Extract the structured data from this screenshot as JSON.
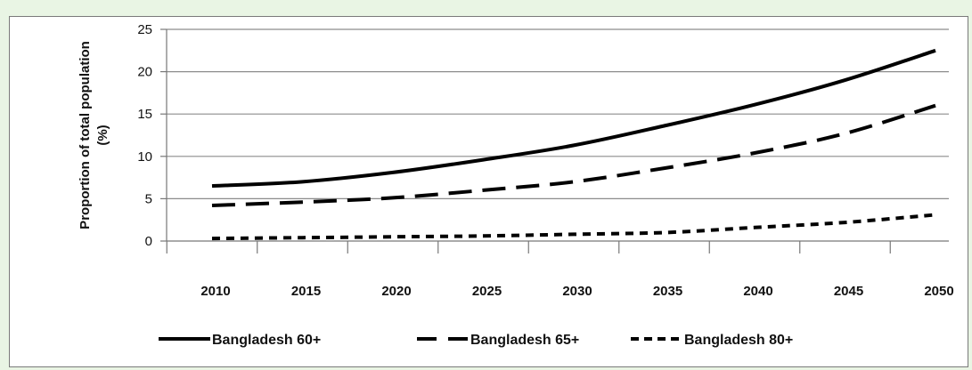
{
  "chart_data": {
    "type": "line",
    "title": "",
    "xlabel": "",
    "ylabel": "Proportion of total population (%)",
    "ylabel_lines": [
      "Proportion of total population",
      "(%)"
    ],
    "x": [
      2010,
      2015,
      2020,
      2025,
      2030,
      2035,
      2040,
      2045,
      2050
    ],
    "xtick_labels": [
      "2010",
      "2015",
      "2020",
      "2025",
      "2030",
      "2035",
      "2040",
      "2045",
      "2050"
    ],
    "yticks": [
      0,
      5,
      10,
      15,
      20,
      25
    ],
    "ytick_labels": [
      "0",
      "5",
      "10",
      "15",
      "20",
      "25"
    ],
    "ylim": [
      0,
      25
    ],
    "xlim": [
      2010,
      2050
    ],
    "grid": true,
    "legend_position": "bottom",
    "series": [
      {
        "name": "Bangladesh 60+",
        "style": "solid",
        "color": "#000000",
        "values": [
          6.5,
          7.0,
          8.1,
          9.6,
          11.3,
          13.6,
          16.1,
          19.0,
          22.5
        ]
      },
      {
        "name": "Bangladesh 65+",
        "style": "long-dash",
        "color": "#000000",
        "values": [
          4.2,
          4.6,
          5.1,
          6.0,
          7.0,
          8.6,
          10.4,
          12.7,
          16.0
        ]
      },
      {
        "name": "Bangladesh 80+",
        "style": "short-dash",
        "color": "#000000",
        "values": [
          0.3,
          0.4,
          0.5,
          0.6,
          0.8,
          1.0,
          1.6,
          2.2,
          3.1
        ]
      }
    ]
  }
}
